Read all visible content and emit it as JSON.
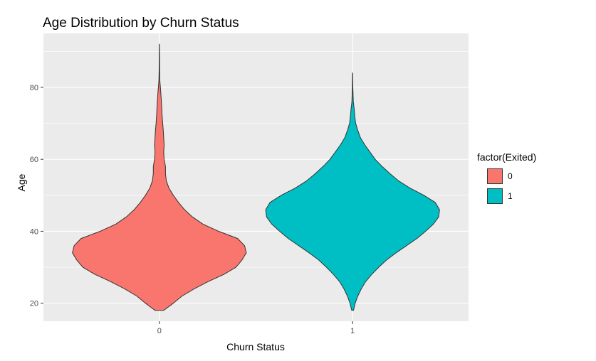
{
  "chart_data": {
    "type": "violin",
    "title": "Age Distribution by Churn Status",
    "xlabel": "Churn Status",
    "ylabel": "Age",
    "categories": [
      "0",
      "1"
    ],
    "y_ticks": [
      20,
      40,
      60,
      80
    ],
    "ylim": [
      15,
      95
    ],
    "grid": true,
    "legend": {
      "title": "factor(Exited)",
      "placement": "right",
      "entries": [
        "0",
        "1"
      ]
    },
    "colors": {
      "0": "#F8766D",
      "1": "#00BFC4",
      "panel": "#EBEBEB",
      "grid": "#FFFFFF",
      "outline": "#333333"
    },
    "series": [
      {
        "name": "0",
        "ymin": 18,
        "ymax": 92,
        "profile": [
          [
            18,
            0.05
          ],
          [
            20,
            0.16
          ],
          [
            22,
            0.26
          ],
          [
            24,
            0.4
          ],
          [
            26,
            0.56
          ],
          [
            28,
            0.74
          ],
          [
            30,
            0.88
          ],
          [
            32,
            0.95
          ],
          [
            34,
            1.0
          ],
          [
            36,
            0.98
          ],
          [
            38,
            0.9
          ],
          [
            40,
            0.68
          ],
          [
            42,
            0.5
          ],
          [
            44,
            0.38
          ],
          [
            46,
            0.29
          ],
          [
            48,
            0.22
          ],
          [
            50,
            0.16
          ],
          [
            52,
            0.11
          ],
          [
            54,
            0.08
          ],
          [
            56,
            0.07
          ],
          [
            58,
            0.07
          ],
          [
            60,
            0.055
          ],
          [
            62,
            0.05
          ],
          [
            64,
            0.055
          ],
          [
            66,
            0.05
          ],
          [
            68,
            0.045
          ],
          [
            70,
            0.038
          ],
          [
            72,
            0.032
          ],
          [
            74,
            0.028
          ],
          [
            76,
            0.024
          ],
          [
            78,
            0.018
          ],
          [
            80,
            0.012
          ],
          [
            82,
            0.005
          ],
          [
            85,
            0.003
          ],
          [
            88,
            0.002
          ],
          [
            92,
            0.001
          ]
        ]
      },
      {
        "name": "1",
        "ymin": 18,
        "ymax": 84,
        "profile": [
          [
            18,
            0.01
          ],
          [
            20,
            0.03
          ],
          [
            22,
            0.06
          ],
          [
            24,
            0.1
          ],
          [
            26,
            0.15
          ],
          [
            28,
            0.22
          ],
          [
            30,
            0.3
          ],
          [
            32,
            0.39
          ],
          [
            34,
            0.5
          ],
          [
            36,
            0.62
          ],
          [
            38,
            0.74
          ],
          [
            40,
            0.84
          ],
          [
            42,
            0.93
          ],
          [
            44,
            0.99
          ],
          [
            46,
            1.0
          ],
          [
            48,
            0.95
          ],
          [
            50,
            0.82
          ],
          [
            52,
            0.66
          ],
          [
            54,
            0.53
          ],
          [
            56,
            0.43
          ],
          [
            58,
            0.34
          ],
          [
            60,
            0.26
          ],
          [
            62,
            0.2
          ],
          [
            64,
            0.14
          ],
          [
            66,
            0.09
          ],
          [
            68,
            0.06
          ],
          [
            70,
            0.035
          ],
          [
            72,
            0.025
          ],
          [
            74,
            0.018
          ],
          [
            76,
            0.008
          ],
          [
            80,
            0.003
          ],
          [
            84,
            0.001
          ]
        ]
      }
    ]
  }
}
